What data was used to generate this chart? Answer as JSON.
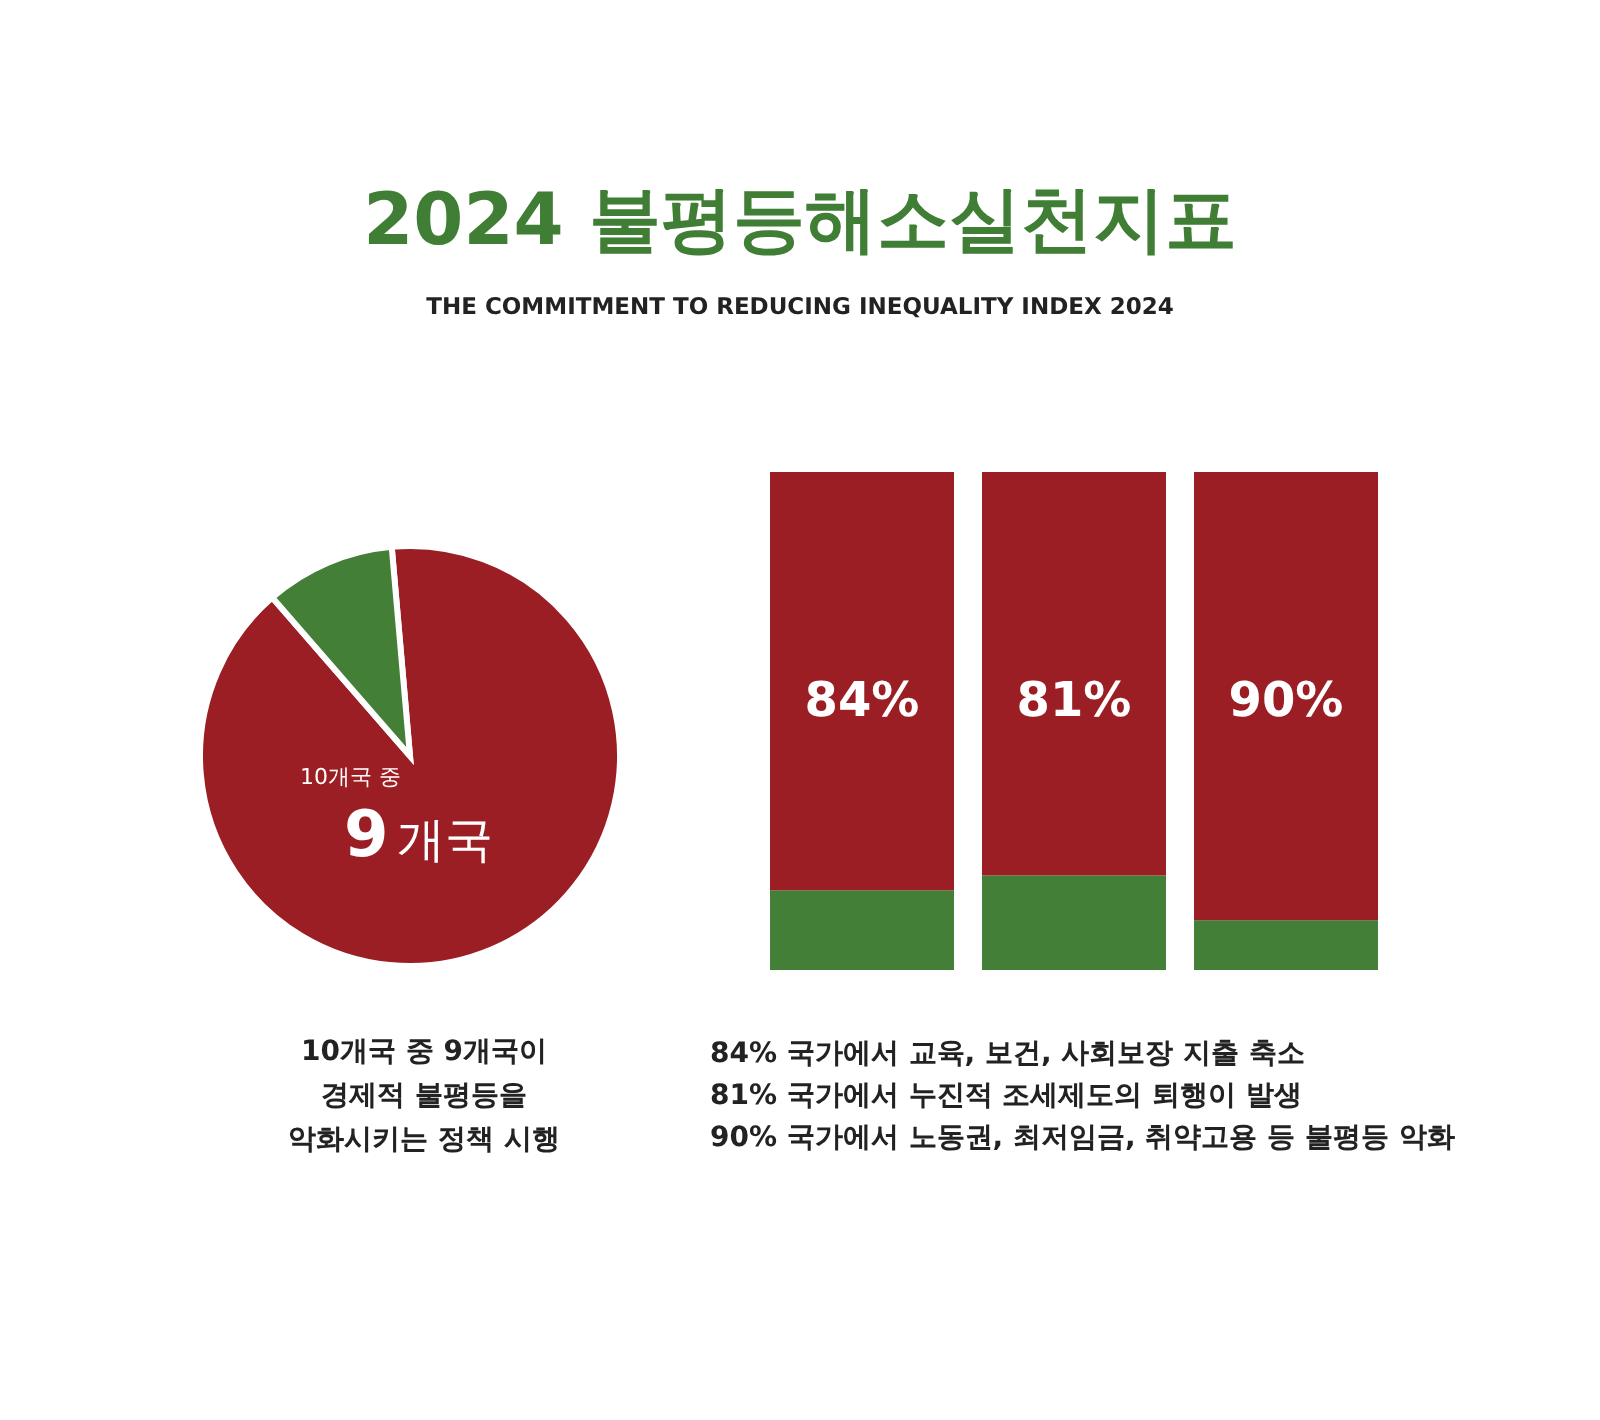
{
  "chart_data": [
    {
      "type": "pie",
      "title": "2024 불평등해소실천지표",
      "subtitle": "THE COMMITMENT TO REDUCING INEQUALITY INDEX 2024",
      "categories": [
        null,
        null
      ],
      "values": [
        90,
        10
      ],
      "colors": [
        "#9a1e24",
        "#447f37"
      ],
      "annotations": [
        "10개국 중",
        "9개국",
        "10개국 중 9개국이\n경제적 불평등을\n악화시키는 정책 시행"
      ]
    },
    {
      "type": "bar",
      "stacked": true,
      "categories": [
        null,
        null,
        null
      ],
      "ylim": [
        0,
        100
      ],
      "series": [
        {
          "color": "#447f37",
          "values": [
            16,
            19,
            10
          ]
        },
        {
          "color": "#9a1e24",
          "values": [
            84,
            81,
            90
          ],
          "value_labels": [
            "84%",
            "81%",
            "90%"
          ]
        }
      ],
      "annotations": [
        "84% 국가에서 교육, 보건, 사회보장 지출 축소",
        "81% 국가에서 누진적 조세제도의 퇴행이 발생",
        "90% 국가에서 노동권, 최저임금, 취약고용 등 불평등 악화"
      ]
    }
  ]
}
